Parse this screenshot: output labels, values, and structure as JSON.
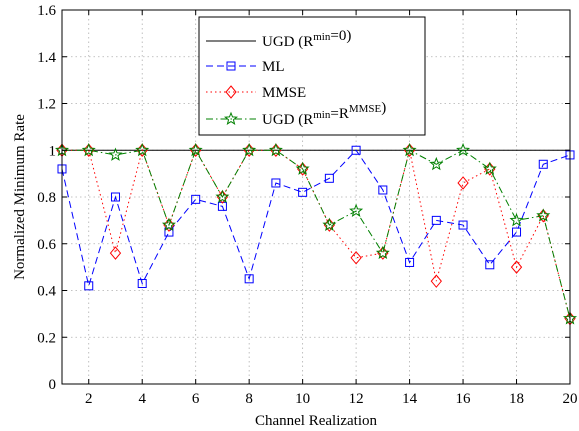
{
  "chart_data": {
    "type": "line",
    "xlabel": "Channel Realization",
    "ylabel": "Normalized Minimum Rate",
    "xlim": [
      1,
      20
    ],
    "ylim": [
      0,
      1.6
    ],
    "xticks": [
      2,
      4,
      6,
      8,
      10,
      12,
      14,
      16,
      18,
      20
    ],
    "yticks": [
      0,
      0.2,
      0.4,
      0.6,
      0.8,
      1,
      1.2,
      1.4,
      1.6
    ],
    "grid": true,
    "legend_position": "top-right",
    "x": [
      1,
      2,
      3,
      4,
      5,
      6,
      7,
      8,
      9,
      10,
      11,
      12,
      13,
      14,
      15,
      16,
      17,
      18,
      19,
      20
    ],
    "series": [
      {
        "name": "UGD (R",
        "name_sup": "min",
        "name_mid": "=0)",
        "name_sup2": "",
        "name_end": "",
        "color": "#000000",
        "line": "solid",
        "marker": "none",
        "values": [
          1,
          1,
          1,
          1,
          1,
          1,
          1,
          1,
          1,
          1,
          1,
          1,
          1,
          1,
          1,
          1,
          1,
          1,
          1,
          1
        ]
      },
      {
        "name": "ML",
        "name_sup": "",
        "name_mid": "",
        "name_sup2": "",
        "name_end": "",
        "color": "#0000ff",
        "line": "dashed",
        "marker": "square",
        "values": [
          0.92,
          0.42,
          0.8,
          0.43,
          0.65,
          0.79,
          0.76,
          0.45,
          0.86,
          0.82,
          0.88,
          1.0,
          0.83,
          0.52,
          0.7,
          0.68,
          0.51,
          0.65,
          0.94,
          0.98
        ]
      },
      {
        "name": "MMSE",
        "name_sup": "",
        "name_mid": "",
        "name_sup2": "",
        "name_end": "",
        "color": "#ff0000",
        "line": "dotted",
        "marker": "diamond",
        "values": [
          1.0,
          1.0,
          0.56,
          1.0,
          0.68,
          1.0,
          0.8,
          1.0,
          1.0,
          0.92,
          0.68,
          0.54,
          0.56,
          1.0,
          0.44,
          0.86,
          0.92,
          0.5,
          0.72,
          0.28
        ]
      },
      {
        "name": "UGD (R",
        "name_sup": "min",
        "name_mid": "=R",
        "name_sup2": "MMSE",
        "name_end": ")",
        "color": "#008000",
        "line": "dashdot",
        "marker": "star",
        "values": [
          1.0,
          1.0,
          0.98,
          1.0,
          0.68,
          1.0,
          0.8,
          1.0,
          1.0,
          0.92,
          0.68,
          0.74,
          0.56,
          1.0,
          0.94,
          1.0,
          0.92,
          0.7,
          0.72,
          0.28
        ]
      }
    ]
  }
}
